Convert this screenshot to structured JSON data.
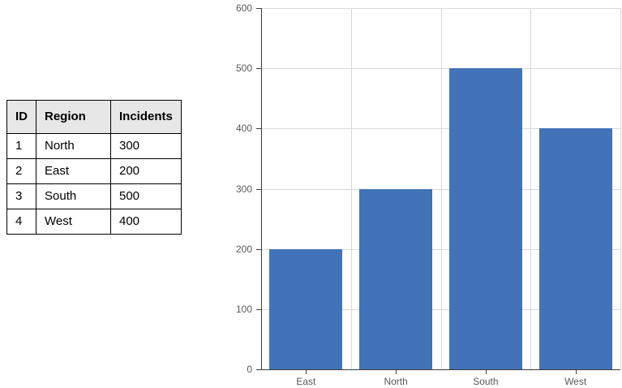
{
  "table": {
    "headers": [
      "ID",
      "Region",
      "Incidents"
    ],
    "rows": [
      {
        "id": "1",
        "region": "North",
        "incidents": "300"
      },
      {
        "id": "2",
        "region": "East",
        "incidents": "200"
      },
      {
        "id": "3",
        "region": "South",
        "incidents": "500"
      },
      {
        "id": "4",
        "region": "West",
        "incidents": "400"
      }
    ]
  },
  "chart_data": {
    "type": "bar",
    "categories": [
      "East",
      "North",
      "South",
      "West"
    ],
    "values": [
      200,
      300,
      500,
      400
    ],
    "title": "",
    "xlabel": "",
    "ylabel": "",
    "ylim": [
      0,
      600
    ],
    "yticks": [
      0,
      100,
      200,
      300,
      400,
      500,
      600
    ],
    "grid": true,
    "legend": "none",
    "bar_color": "#4273b8",
    "gridline_color": "#d9d9d9",
    "axis_color": "#3b3b3b",
    "tick_label_color": "#595959"
  }
}
